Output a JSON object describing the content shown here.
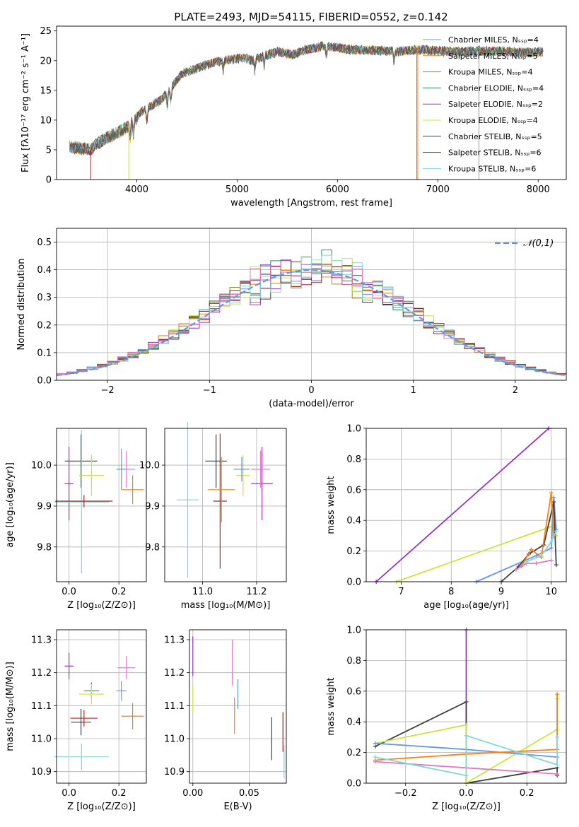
{
  "figure": {
    "title": "PLATE=2493, MJD=54115, FIBERID=0552, z=0.142"
  },
  "chart_data": [
    {
      "id": "spectrum",
      "type": "line",
      "xlabel": "wavelength [Angstrom, rest frame]",
      "ylabel": "Flux [fλ10⁻¹⁷ erg cm⁻² s⁻¹ A⁻¹]",
      "xlim": [
        3200,
        8280
      ],
      "ylim": [
        0,
        25.8
      ],
      "xticks": [
        4000,
        5000,
        6000,
        7000,
        8000
      ],
      "yticks": [
        0,
        5,
        10,
        15,
        20,
        25
      ],
      "grid": false,
      "legend_position": "top-right",
      "series": [
        {
          "name": "Chabrier MILES, N_SSP=4",
          "color": "#6495ed"
        },
        {
          "name": "Salpeter MILES, N_SSP=5",
          "color": "#ff7f0e"
        },
        {
          "name": "Kroupa MILES, N_SSP=4",
          "color": "#b8860b"
        },
        {
          "name": "Chabrier ELODIE, N_SSP=4",
          "color": "#2e8b57"
        },
        {
          "name": "Salpeter ELODIE, N_SSP=2",
          "color": "#9932cc"
        },
        {
          "name": "Kroupa ELODIE, N_SSP=4",
          "color": "#c8e63c"
        },
        {
          "name": "Chabrier STELIB, N_SSP=5",
          "color": "#404040"
        },
        {
          "name": "Salpeter STELIB, N_SSP=6",
          "color": "#a52a2a"
        },
        {
          "name": "Kroupa STELIB, N_SSP=6",
          "color": "#7fd8d8"
        }
      ],
      "data_envelope": {
        "x": [
          3330,
          3450,
          3540,
          3600,
          3700,
          3800,
          3900,
          3970,
          4050,
          4150,
          4250,
          4350,
          4450,
          4550,
          4650,
          4750,
          4850,
          4950,
          5050,
          5150,
          5250,
          5400,
          5550,
          5700,
          5850,
          6000,
          6150,
          6300,
          6450,
          6600,
          6750,
          6900,
          7050,
          7200,
          7400,
          7600,
          7800,
          7950,
          8050
        ],
        "y": [
          5.5,
          5.2,
          5.0,
          6.0,
          7.0,
          7.8,
          8.8,
          9.8,
          11.5,
          12.4,
          13.5,
          15.6,
          17.8,
          18.4,
          19.0,
          19.6,
          20.0,
          20.2,
          20.5,
          20.0,
          20.6,
          21.5,
          21.0,
          21.9,
          22.4,
          22.2,
          21.8,
          21.8,
          21.6,
          21.5,
          21.8,
          21.8,
          21.6,
          21.5,
          21.6,
          21.6,
          21.4,
          21.4,
          21.5
        ]
      }
    },
    {
      "id": "residuals",
      "type": "histogram",
      "xlabel": "(data-model)/error",
      "ylabel": "Normed distribution",
      "xlim": [
        -2.5,
        2.5
      ],
      "ylim": [
        0,
        0.55
      ],
      "xticks": [
        -2,
        -1,
        0,
        1,
        2
      ],
      "yticks": [
        0.0,
        0.1,
        0.2,
        0.3,
        0.4,
        0.5
      ],
      "grid": true,
      "legend_position": "top-right",
      "reference_curve": {
        "name": "𝒩(0,1)",
        "mean": 0,
        "sigma": 1,
        "color": "#6495ed"
      },
      "bin_width": 0.1,
      "colors": [
        "#6495ed",
        "#ff7f0e",
        "#b8860b",
        "#2e8b57",
        "#9932cc",
        "#c8e63c",
        "#404040",
        "#a52a2a",
        "#7fd8d8",
        "#e377c2"
      ]
    },
    {
      "id": "age-vs-Z",
      "type": "scatter",
      "xlabel": "Z [log₁₀(Z/Z⊙)]",
      "ylabel": "age  [log₁₀(age/yr)]",
      "xlim": [
        -0.05,
        0.31
      ],
      "ylim": [
        9.715,
        10.09
      ],
      "xticks": [
        0.0,
        0.2
      ],
      "yticks": [
        9.8,
        9.9,
        10.0
      ],
      "grid": true,
      "points": [
        {
          "x": 0.048,
          "y": 10.01,
          "xerr": 0.065,
          "yerr": 0.065,
          "color": "#404040"
        },
        {
          "x": 0.0,
          "y": 9.955,
          "xerr": 0.018,
          "yerr": 0.09,
          "color": "#9932cc"
        },
        {
          "x": 0.09,
          "y": 9.975,
          "xerr": 0.05,
          "yerr": 0.05,
          "color": "#c8e63c"
        },
        {
          "x": 0.05,
          "y": 9.91,
          "xerr": 0.11,
          "yerr": 0.175,
          "color": "#7fd8d8"
        },
        {
          "x": 0.06,
          "y": 9.912,
          "xerr": 0.115,
          "yerr": 0.015,
          "color": "#a52a2a"
        },
        {
          "x": 0.23,
          "y": 9.99,
          "xerr": 0.035,
          "yerr": 0.045,
          "color": "#e377c2"
        },
        {
          "x": 0.21,
          "y": 9.99,
          "xerr": 0.02,
          "yerr": 0.05,
          "color": "#6495ed"
        },
        {
          "x": 0.255,
          "y": 9.94,
          "xerr": 0.045,
          "yerr": 0.035,
          "color": "#ff7f0e"
        }
      ]
    },
    {
      "id": "age-vs-mass",
      "type": "scatter",
      "xlabel": "mass [log₁₀(M/M⊙)]",
      "ylabel": "",
      "xlim": [
        10.86,
        11.31
      ],
      "ylim": [
        9.715,
        10.09
      ],
      "xticks": [
        11.0,
        11.2
      ],
      "yticks": [
        9.8,
        9.9,
        10.0
      ],
      "grid": true,
      "points": [
        {
          "x": 11.05,
          "y": 10.01,
          "xerr": 0.04,
          "yerr": 0.065,
          "color": "#404040"
        },
        {
          "x": 10.945,
          "y": 9.915,
          "xerr": 0.04,
          "yerr": 0.19,
          "color": "#7fd8d8"
        },
        {
          "x": 11.065,
          "y": 9.912,
          "xerr": 0.025,
          "yerr": 0.165,
          "color": "#a52a2a"
        },
        {
          "x": 11.07,
          "y": 9.94,
          "xerr": 0.05,
          "yerr": 0.08,
          "color": "#ff7f0e"
        },
        {
          "x": 11.15,
          "y": 9.975,
          "xerr": 0.025,
          "yerr": 0.05,
          "color": "#c8e63c"
        },
        {
          "x": 11.145,
          "y": 9.99,
          "xerr": 0.03,
          "yerr": 0.03,
          "color": "#6495ed"
        },
        {
          "x": 11.22,
          "y": 9.955,
          "xerr": 0.04,
          "yerr": 0.09,
          "color": "#9932cc"
        },
        {
          "x": 11.215,
          "y": 9.99,
          "xerr": 0.035,
          "yerr": 0.045,
          "color": "#e377c2"
        }
      ]
    },
    {
      "id": "weight-vs-age",
      "type": "line",
      "xlabel": "age  [log₁₀(age/yr)]",
      "ylabel": "mass weight",
      "xlim": [
        6.3,
        10.3
      ],
      "ylim": [
        0,
        1.0
      ],
      "xticks": [
        7,
        8,
        9,
        10
      ],
      "yticks": [
        0.0,
        0.2,
        0.4,
        0.6,
        0.8,
        1.0
      ],
      "grid": true,
      "series": [
        {
          "color": "#9932cc",
          "x": [
            6.5,
            9.95
          ],
          "y": [
            0.0,
            1.0
          ]
        },
        {
          "color": "#c8e63c",
          "x": [
            6.9,
            10.0,
            10.1
          ],
          "y": [
            0.0,
            0.36,
            0.3
          ]
        },
        {
          "color": "#6495ed",
          "x": [
            8.5,
            9.7,
            10.0,
            10.05,
            10.1
          ],
          "y": [
            0.0,
            0.17,
            0.22,
            0.55,
            0.34
          ]
        },
        {
          "color": "#404040",
          "x": [
            9.0,
            9.35,
            9.55,
            9.85,
            10.05,
            10.1
          ],
          "y": [
            0.0,
            0.1,
            0.18,
            0.24,
            0.52,
            0.11
          ]
        },
        {
          "color": "#ff7f0e",
          "x": [
            9.4,
            9.6,
            9.8,
            10.0,
            10.05
          ],
          "y": [
            0.1,
            0.21,
            0.16,
            0.58,
            0.3
          ]
        },
        {
          "color": "#e377c2",
          "x": [
            9.3,
            9.5,
            9.7,
            10.0
          ],
          "y": [
            0.08,
            0.12,
            0.12,
            0.14
          ]
        },
        {
          "color": "#7fd8d8",
          "x": [
            9.5,
            9.8,
            10.0,
            10.1
          ],
          "y": [
            0.13,
            0.17,
            0.26,
            0.33
          ]
        }
      ]
    },
    {
      "id": "mass-vs-Z",
      "type": "scatter",
      "xlabel": "Z [log₁₀(Z/Z⊙)]",
      "ylabel": "mass [log₁₀(M/M⊙)]",
      "xlim": [
        -0.05,
        0.31
      ],
      "ylim": [
        10.865,
        11.33
      ],
      "xticks": [
        0.0,
        0.2
      ],
      "yticks": [
        10.9,
        11.0,
        11.1,
        11.2,
        11.3
      ],
      "grid": true,
      "points": [
        {
          "x": 0.0,
          "y": 11.22,
          "xerr": 0.018,
          "yerr": 0.04,
          "color": "#9932cc"
        },
        {
          "x": 0.23,
          "y": 11.215,
          "xerr": 0.035,
          "yerr": 0.035,
          "color": "#e377c2"
        },
        {
          "x": 0.09,
          "y": 11.145,
          "xerr": 0.03,
          "yerr": 0.025,
          "color": "#2e8b57"
        },
        {
          "x": 0.21,
          "y": 11.145,
          "xerr": 0.02,
          "yerr": 0.03,
          "color": "#6495ed"
        },
        {
          "x": 0.09,
          "y": 11.135,
          "xerr": 0.05,
          "yerr": 0.03,
          "color": "#c8e63c"
        },
        {
          "x": 0.255,
          "y": 11.068,
          "xerr": 0.045,
          "yerr": 0.04,
          "color": "#ff7f0e"
        },
        {
          "x": 0.06,
          "y": 11.062,
          "xerr": 0.055,
          "yerr": 0.025,
          "color": "#a52a2a"
        },
        {
          "x": 0.048,
          "y": 11.05,
          "xerr": 0.04,
          "yerr": 0.04,
          "color": "#404040"
        },
        {
          "x": 0.05,
          "y": 10.945,
          "xerr": 0.11,
          "yerr": 0.04,
          "color": "#7fd8d8"
        }
      ]
    },
    {
      "id": "mass-vs-EBV",
      "type": "scatter",
      "xlabel": "E(B-V)",
      "ylabel": "",
      "xlim": [
        -0.003,
        0.083
      ],
      "ylim": [
        10.865,
        11.33
      ],
      "xticks": [
        0.0,
        0.05
      ],
      "yticks": [
        10.9,
        11.0,
        11.1,
        11.2,
        11.3
      ],
      "grid": true,
      "points": [
        {
          "x": 0.0,
          "y": 11.25,
          "yerr": 0.06,
          "color": "#9932cc"
        },
        {
          "x": 0.0,
          "y": 11.12,
          "yerr": 0.04,
          "color": "#c8e63c"
        },
        {
          "x": 0.035,
          "y": 11.23,
          "yerr": 0.07,
          "color": "#e377c2"
        },
        {
          "x": 0.04,
          "y": 11.135,
          "yerr": 0.045,
          "color": "#6495ed"
        },
        {
          "x": 0.037,
          "y": 11.07,
          "yerr": 0.055,
          "color": "#ff7f0e"
        },
        {
          "x": 0.07,
          "y": 11.0,
          "yerr": 0.065,
          "color": "#404040"
        },
        {
          "x": 0.08,
          "y": 11.02,
          "yerr": 0.06,
          "color": "#a52a2a"
        },
        {
          "x": 0.081,
          "y": 10.93,
          "yerr": 0.05,
          "color": "#7fd8d8"
        }
      ]
    },
    {
      "id": "weight-vs-Z",
      "type": "line",
      "xlabel": "Z [log₁₀(Z/Z⊙)]",
      "ylabel": "mass weight",
      "xlim": [
        -0.33,
        0.33
      ],
      "ylim": [
        0,
        1.0
      ],
      "xticks": [
        -0.2,
        0.0,
        0.2
      ],
      "yticks": [
        0.0,
        0.2,
        0.4,
        0.6,
        0.8,
        1.0
      ],
      "grid": true,
      "series": [
        {
          "color": "#9932cc",
          "x": [
            0.0,
            0.0
          ],
          "y": [
            0.0,
            1.0
          ]
        },
        {
          "color": "#404040",
          "x": [
            -0.3,
            0.0,
            0.0,
            0.3,
            0.3
          ],
          "y": [
            0.24,
            0.53,
            0.0,
            0.1,
            0.05
          ]
        },
        {
          "color": "#c8e63c",
          "x": [
            -0.3,
            0.0,
            0.0,
            0.3,
            0.3
          ],
          "y": [
            0.26,
            0.38,
            0.0,
            0.35,
            0.55
          ]
        },
        {
          "color": "#6495ed",
          "x": [
            -0.3,
            0.0,
            0.3
          ],
          "y": [
            0.26,
            0.22,
            0.17
          ]
        },
        {
          "color": "#ff7f0e",
          "x": [
            -0.3,
            0.0,
            0.3,
            0.3
          ],
          "y": [
            0.15,
            0.19,
            0.22,
            0.58
          ]
        },
        {
          "color": "#e377c2",
          "x": [
            -0.3,
            0.0,
            0.3
          ],
          "y": [
            0.14,
            0.1,
            0.06
          ]
        },
        {
          "color": "#7fd8d8",
          "x": [
            -0.3,
            0.0,
            0.0,
            0.3,
            0.3
          ],
          "y": [
            0.17,
            0.05,
            0.31,
            0.12,
            0.3
          ]
        }
      ]
    }
  ]
}
